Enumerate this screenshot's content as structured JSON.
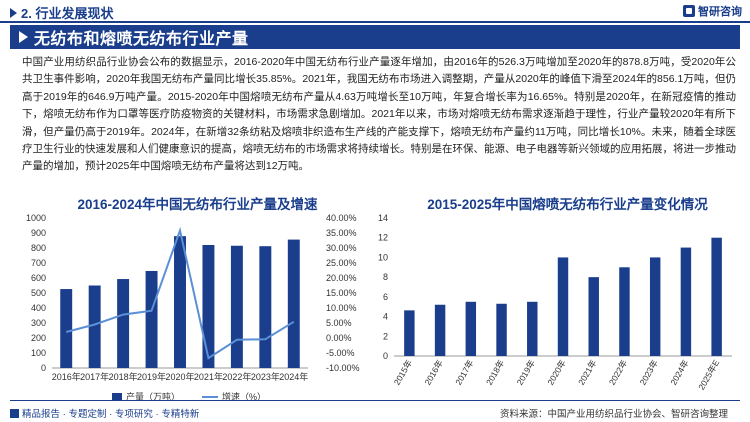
{
  "header": {
    "section": "2. 行业发展现状",
    "logo_text": "智研咨询"
  },
  "banner": {
    "title": "无纺布和熔喷无纺布行业产量"
  },
  "body_text": "中国产业用纺织品行业协会公布的数据显示，2016-2020年中国无纺布行业产量逐年增加，由2016年的526.3万吨增加至2020年的878.8万吨，受2020年公共卫生事件影响，2020年我国无纺布产量同比增长35.85%。2021年，我国无纺布市场进入调整期，产量从2020年的峰值下滑至2024年的856.1万吨，但仍高于2019年的646.9万吨产量。2015-2020年中国熔喷无纺布产量从4.63万吨增长至10万吨，年复合增长率为16.65%。特别是2020年，在新冠疫情的推动下，熔喷无纺布作为口罩等医疗防疫物资的关键材料，市场需求急剧增加。2021年以来，市场对熔喷无纺布需求逐渐趋于理性，行业产量较2020年有所下滑，但产量仍高于2019年。2024年，在新增32条纺粘及熔喷非织造布生产线的产能支撑下，熔喷无纺布产量约11万吨，同比增长10%。未来，随着全球医疗卫生行业的快速发展和人们健康意识的提高，熔喷无纺布的市场需求将持续增长。特别是在环保、能源、电子电器等新兴领域的应用拓展，将进一步推动产量的增加，预计2025年中国熔喷无纺布产量将达到12万吨。",
  "chart_data": [
    {
      "type": "bar",
      "title": "2016-2024年中国无纺布行业产量及增速",
      "categories": [
        "2016年",
        "2017年",
        "2018年",
        "2019年",
        "2020年",
        "2021年",
        "2022年",
        "2023年",
        "2024年"
      ],
      "series": [
        {
          "name": "产量（万吨）",
          "type": "bar",
          "axis": "left",
          "color": "#1a3e8c",
          "values": [
            526.3,
            550,
            593,
            646.9,
            878.8,
            820,
            815,
            812,
            856.1
          ]
        },
        {
          "name": "增速（%）",
          "type": "line",
          "axis": "right",
          "color": "#5b8fd6",
          "values": [
            2.0,
            4.5,
            7.8,
            9.1,
            35.85,
            -6.7,
            -0.6,
            -0.4,
            5.4
          ]
        }
      ],
      "ylim": [
        0,
        1000
      ],
      "yticks": [
        "0",
        "100",
        "200",
        "300",
        "400",
        "500",
        "600",
        "700",
        "800",
        "900",
        "1000"
      ],
      "y2lim": [
        -10,
        40
      ],
      "y2ticks": [
        "-10.00%",
        "-5.00%",
        "0.00%",
        "5.00%",
        "10.00%",
        "15.00%",
        "20.00%",
        "25.00%",
        "30.00%",
        "35.00%",
        "40.00%"
      ],
      "legend": [
        "产量（万吨）",
        "增速（%）"
      ],
      "legend_position": "bottom"
    },
    {
      "type": "bar",
      "title": "2015-2025年中国熔喷无纺布行业产量变化情况",
      "categories": [
        "2015年",
        "2016年",
        "2017年",
        "2018年",
        "2019年",
        "2020年",
        "2021年",
        "2022年",
        "2023年",
        "2024年",
        "2025年E"
      ],
      "values": [
        4.63,
        5.2,
        5.5,
        5.3,
        5.5,
        10,
        8,
        9,
        10,
        11,
        12
      ],
      "color": "#1a3e8c",
      "ylim": [
        0,
        14
      ],
      "yticks": [
        "0",
        "2",
        "4",
        "6",
        "8",
        "10",
        "12",
        "14"
      ]
    }
  ],
  "footer": {
    "left": "精品报告 · 专题定制 · 专项研究 · 专精特新",
    "right": "资料来源：中国产业用纺织品行业协会、智研咨询整理"
  }
}
